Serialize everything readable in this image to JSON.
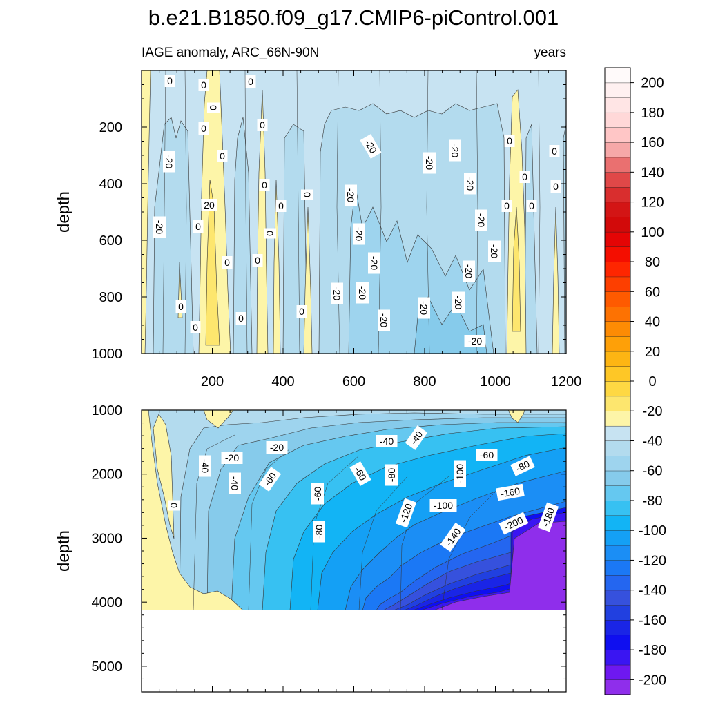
{
  "chart_data": {
    "type": "heatmap",
    "title": "b.e21.B1850.f09_g17.CMIP6-piControl.001",
    "left_string": "IAGE anomaly, ARC_66N-90N",
    "right_string": "years",
    "panels": [
      {
        "name": "upper",
        "ylabel": "depth",
        "xlim": [
          0,
          1200
        ],
        "ylim": [
          0,
          1000
        ],
        "y_reversed": true,
        "x_ticks": [
          200,
          400,
          600,
          800,
          1000,
          1200
        ],
        "y_ticks": [
          200,
          400,
          600,
          800,
          1000
        ],
        "contour_labels": [
          "0",
          "0",
          "0",
          "0",
          "0",
          "0",
          "0",
          "0",
          "0",
          "0",
          "0",
          "0",
          "0",
          "0",
          "0",
          "0",
          "0",
          "0",
          "0",
          "0",
          "0",
          "0",
          "0",
          "0",
          "20",
          "-20",
          "-20",
          "-20",
          "-20",
          "-20",
          "-20",
          "-20",
          "-20",
          "-20",
          "-20",
          "-20",
          "-20",
          "-20",
          "-20",
          "-20",
          "-20",
          "-20",
          "-20",
          "-20",
          "-20"
        ]
      },
      {
        "name": "lower",
        "ylabel": "depth",
        "xlim": [
          0,
          1200
        ],
        "ylim": [
          1000,
          5400
        ],
        "y_reversed": true,
        "data_bottom_depth": 4100,
        "y_ticks": [
          1000,
          2000,
          3000,
          4000,
          5000
        ],
        "contour_labels": [
          "0",
          "-20",
          "-20",
          "-40",
          "-40",
          "-40",
          "-40",
          "-60",
          "-60",
          "-60",
          "-60",
          "-80",
          "-80",
          "-80",
          "-100",
          "-100",
          "-120",
          "-140",
          "-160",
          "-180",
          "-200"
        ],
        "min_anomaly_region": {
          "years": [
            800,
            1200
          ],
          "depth": [
            2700,
            4100
          ],
          "value": -200
        }
      }
    ],
    "colorbar": {
      "levels": [
        -210,
        -200,
        -190,
        -180,
        -170,
        -160,
        -150,
        -140,
        -130,
        -120,
        -110,
        -100,
        -90,
        -80,
        -70,
        -60,
        -50,
        -40,
        -30,
        -20,
        -10,
        0,
        10,
        20,
        30,
        40,
        50,
        60,
        70,
        80,
        90,
        100,
        110,
        120,
        130,
        140,
        150,
        160,
        170,
        180,
        190,
        200,
        210
      ],
      "tick_labels": [
        "-200",
        "-180",
        "-160",
        "-140",
        "-120",
        "-100",
        "-80",
        "-60",
        "-40",
        "-20",
        "0",
        "20",
        "40",
        "60",
        "80",
        "100",
        "120",
        "140",
        "160",
        "180",
        "200"
      ],
      "colors": [
        "#8f2eeb",
        "#6e18f0",
        "#3a15f2",
        "#0f0ff0",
        "#1a25e6",
        "#2140e0",
        "#3651dd",
        "#2466f0",
        "#1b78f5",
        "#1b8ef5",
        "#14a0f5",
        "#12b4f5",
        "#37c1f2",
        "#65c8f0",
        "#86cbeb",
        "#9ed4ee",
        "#b3dbee",
        "#c7e3f2",
        "#fdf5a8",
        "#fde66e",
        "#fed843",
        "#fec726",
        "#fdb513",
        "#fea008",
        "#fd8b04",
        "#fd7202",
        "#fe5a00",
        "#fd3f00",
        "#fe2600",
        "#f40e00",
        "#e40505",
        "#d20a0a",
        "#d31515",
        "#d92e2e",
        "#e04848",
        "#ea7070",
        "#f6a8a8",
        "#ffc6c6",
        "#ffd8d8",
        "#ffe5e5",
        "#fff0f0",
        "#fffafa"
      ]
    }
  }
}
